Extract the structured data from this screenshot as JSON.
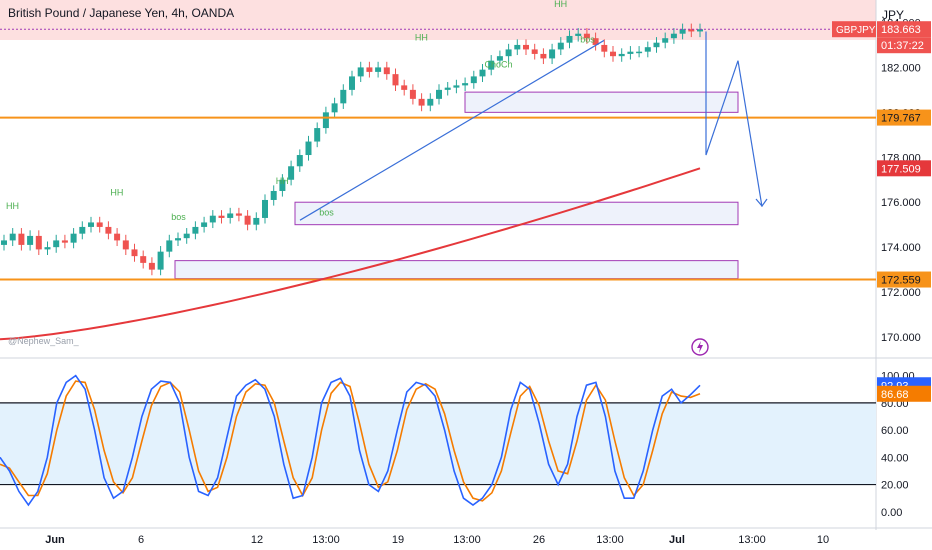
{
  "header": {
    "title": "British Pound / Japanese Yen, 4h, OANDA",
    "currency": "JPY",
    "watermark": "@Nephew_Sam_"
  },
  "colors": {
    "bull": "#26a69a",
    "bear": "#ef5350",
    "ema": "#e5383b",
    "trendline": "#3a6fd8",
    "orange_level": "#f7931a",
    "zone_border": "#a23ab5",
    "zone_fill": "#eef2fb",
    "premium_fill": "#fde0e0",
    "stoch_k": "#2962ff",
    "stoch_d": "#f57c00",
    "stoch_band": "#e3f2fd",
    "label_green": "#4caf50"
  },
  "icons": {
    "flash": "lightning-bolt-icon"
  },
  "chart_data": [
    {
      "type": "candlestick",
      "symbol": "GBPJPY",
      "timeframe": "4h",
      "y_ticks": [
        "184.000",
        "182.000",
        "180.000",
        "178.000",
        "176.000",
        "174.000",
        "172.000",
        "170.000"
      ],
      "y_tick_values": [
        184,
        182,
        180,
        178,
        176,
        174,
        172,
        170
      ],
      "ylim": [
        169.2,
        185.0
      ],
      "x_ticks": [
        "Jun",
        "6",
        "12",
        "13:00",
        "19",
        "13:00",
        "26",
        "13:00",
        "Jul",
        "13:00",
        "10"
      ],
      "price_labels": {
        "symbol": "GBPJPY",
        "last": "183.663",
        "countdown": "01:37:22",
        "levels": [
          "179.767",
          "177.509",
          "172.559"
        ]
      },
      "levels": [
        179.767,
        172.559
      ],
      "ema_last": 177.509,
      "structure_labels": [
        "HH",
        "HH",
        "bos",
        "HH",
        "bos",
        "HH",
        "ChoCh",
        "HH",
        "bos",
        "HH",
        "HH"
      ],
      "close_path": [
        174.3,
        174.6,
        174.1,
        174.5,
        173.9,
        174.0,
        174.3,
        174.2,
        174.6,
        174.9,
        175.1,
        174.9,
        174.6,
        174.3,
        173.9,
        173.6,
        173.3,
        173.0,
        173.8,
        174.3,
        174.4,
        174.6,
        174.9,
        175.1,
        175.4,
        175.3,
        175.5,
        175.4,
        175.0,
        175.3,
        176.1,
        176.5,
        177.0,
        177.6,
        178.1,
        178.7,
        179.3,
        180.0,
        180.4,
        181.0,
        181.6,
        182.0,
        181.8,
        182.0,
        181.7,
        181.2,
        181.0,
        180.6,
        180.3,
        180.6,
        181.0,
        181.1,
        181.2,
        181.3,
        181.6,
        181.9,
        182.3,
        182.5,
        182.8,
        183.0,
        182.8,
        182.6,
        182.4,
        182.8,
        183.1,
        183.4,
        183.5,
        183.3,
        183.0,
        182.7,
        182.5,
        182.6,
        182.7,
        182.7,
        182.9,
        183.1,
        183.3,
        183.5,
        183.7,
        183.6,
        183.7
      ],
      "projection": [
        [
          179.8,
          183.5
        ],
        [
          178.1,
          180.0
        ],
        [
          182.3,
          180.3
        ],
        [
          175.8,
          177.2
        ]
      ]
    },
    {
      "type": "line",
      "name": "stochastic",
      "y_ticks": [
        "100.00",
        "80.00",
        "60.00",
        "40.00",
        "20.00",
        "0.00"
      ],
      "y_tick_values": [
        100,
        80,
        60,
        40,
        20,
        0
      ],
      "ylim": [
        -6,
        110
      ],
      "band": [
        20,
        80
      ],
      "k_last": "92.93",
      "d_last": "86.68",
      "k": [
        40,
        30,
        15,
        5,
        15,
        40,
        80,
        95,
        100,
        90,
        60,
        25,
        10,
        15,
        40,
        70,
        90,
        96,
        95,
        80,
        40,
        15,
        12,
        25,
        55,
        85,
        93,
        97,
        90,
        70,
        35,
        10,
        12,
        40,
        80,
        95,
        98,
        85,
        45,
        20,
        15,
        30,
        60,
        88,
        95,
        93,
        85,
        60,
        30,
        10,
        5,
        10,
        20,
        40,
        75,
        95,
        90,
        65,
        35,
        20,
        35,
        70,
        93,
        95,
        70,
        30,
        10,
        10,
        30,
        60,
        85,
        90,
        80,
        86,
        92.93
      ],
      "d": [
        35,
        32,
        22,
        12,
        12,
        28,
        60,
        85,
        96,
        95,
        75,
        45,
        22,
        14,
        25,
        52,
        78,
        92,
        95,
        88,
        60,
        30,
        15,
        18,
        40,
        70,
        88,
        94,
        93,
        80,
        52,
        25,
        12,
        25,
        60,
        87,
        95,
        92,
        65,
        35,
        18,
        22,
        45,
        75,
        90,
        94,
        90,
        72,
        45,
        22,
        10,
        8,
        14,
        30,
        58,
        85,
        92,
        78,
        52,
        30,
        28,
        52,
        82,
        93,
        82,
        52,
        25,
        12,
        20,
        45,
        72,
        88,
        85,
        84,
        86.68
      ]
    }
  ]
}
